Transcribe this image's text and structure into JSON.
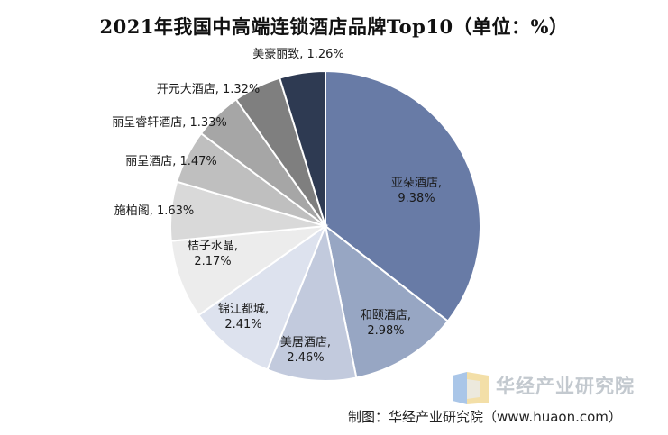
{
  "chart_data": {
    "type": "pie",
    "title": "2021年我国中高端连锁酒店品牌Top10（单位：%）",
    "unit": "%",
    "slices": [
      {
        "name": "亚朵酒店",
        "value": 9.38,
        "color": "#687ba6",
        "label_color": "#1a1a1a",
        "label_lines": [
          "亚朵酒店,",
          "9.38%"
        ]
      },
      {
        "name": "和颐酒店",
        "value": 2.98,
        "color": "#97a6c3",
        "label_color": "#1a1a1a",
        "label_lines": [
          "和颐酒店,",
          "2.98%"
        ]
      },
      {
        "name": "美居酒店",
        "value": 2.46,
        "color": "#c2cadd",
        "label_color": "#1a1a1a",
        "label_lines": [
          "美居酒店,",
          "2.46%"
        ]
      },
      {
        "name": "锦江都城",
        "value": 2.41,
        "color": "#dde2ee",
        "label_color": "#1a1a1a",
        "label_lines": [
          "锦江都城,",
          "2.41%"
        ]
      },
      {
        "name": "桔子水晶",
        "value": 2.17,
        "color": "#ececec",
        "label_color": "#1a1a1a",
        "label_lines": [
          "桔子水晶,",
          "2.17%"
        ]
      },
      {
        "name": "施柏阁",
        "value": 1.63,
        "color": "#d9d9d9",
        "label_color": "#1a1a1a",
        "label_lines": [
          "施柏阁, 1.63%"
        ]
      },
      {
        "name": "丽呈酒店",
        "value": 1.47,
        "color": "#bfbfbf",
        "label_color": "#1a1a1a",
        "label_lines": [
          "丽呈酒店, 1.47%"
        ]
      },
      {
        "name": "丽呈睿轩酒店",
        "value": 1.33,
        "color": "#a6a6a6",
        "label_color": "#1a1a1a",
        "label_lines": [
          "丽呈睿轩酒店, 1.33%"
        ]
      },
      {
        "name": "开元大酒店",
        "value": 1.32,
        "color": "#7f7f7f",
        "label_color": "#1a1a1a",
        "label_lines": [
          "开元大酒店, 1.32%"
        ]
      },
      {
        "name": "美豪丽致",
        "value": 1.26,
        "color": "#2e3a52",
        "label_color": "#1a1a1a",
        "label_lines": [
          "美豪丽致, 1.26%"
        ]
      }
    ]
  },
  "watermark": {
    "text": "华经产业研究院"
  },
  "source_note": "制图：华经产业研究院（www.huaon.com）"
}
